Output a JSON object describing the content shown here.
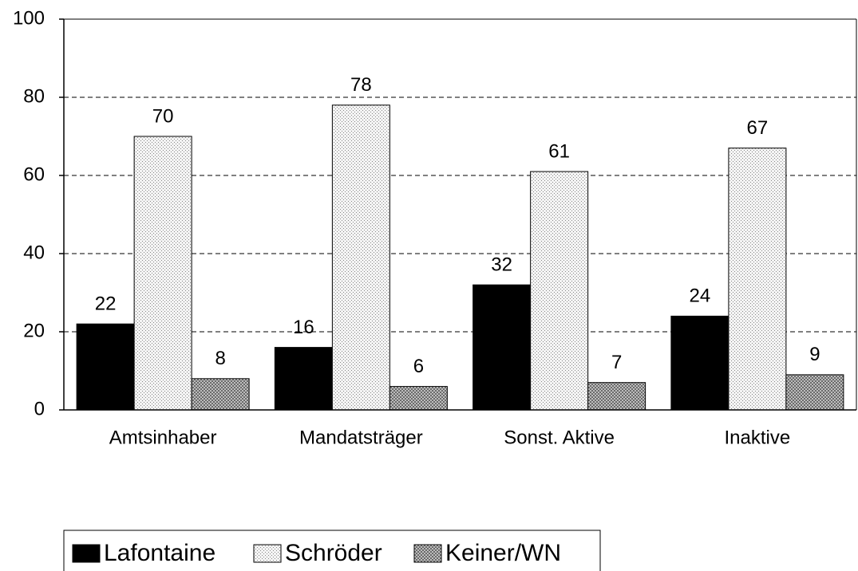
{
  "chart_data": {
    "type": "bar",
    "categories": [
      "Amtsinhaber",
      "Mandatsträger",
      "Sonst. Aktive",
      "Inaktive"
    ],
    "series": [
      {
        "name": "Lafontaine",
        "color": "#000000",
        "pattern": "solid",
        "values": [
          22,
          16,
          32,
          24
        ]
      },
      {
        "name": "Schröder",
        "color": "#f4f4f4",
        "pattern": "dots",
        "values": [
          70,
          78,
          61,
          67
        ]
      },
      {
        "name": "Keiner/WN",
        "color": "#d4d4d4",
        "pattern": "crosshatch",
        "values": [
          8,
          6,
          7,
          9
        ]
      }
    ],
    "ylim": [
      0,
      100
    ],
    "yticks": [
      0,
      20,
      40,
      60,
      80,
      100
    ],
    "grid": true,
    "legend": "bottom-left"
  }
}
